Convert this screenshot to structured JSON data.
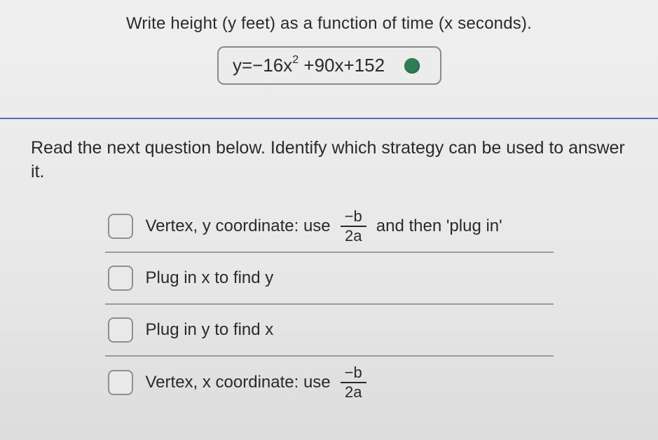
{
  "top": {
    "prompt": "Write height (y feet) as a function of time (x seconds).",
    "answer_prefix": "y=−16x",
    "answer_exp": "2",
    "answer_suffix": " +90x+152",
    "status_color": "#2e7d54"
  },
  "divider_color": "#4a6fbf",
  "bottom": {
    "prompt": "Read the next question below. Identify which strategy can be used to answer it.",
    "options": [
      {
        "pre": "Vertex, y coordinate: use ",
        "frac_num": "−b",
        "frac_den": "2a",
        "post": " and then 'plug in'"
      },
      {
        "pre": "Plug in x to find y",
        "frac_num": "",
        "frac_den": "",
        "post": ""
      },
      {
        "pre": "Plug in y to find x",
        "frac_num": "",
        "frac_den": "",
        "post": ""
      },
      {
        "pre": "Vertex, x coordinate: use ",
        "frac_num": "−b",
        "frac_den": "2a",
        "post": ""
      }
    ]
  },
  "style": {
    "background": "#ededed",
    "text_color": "#2a2a2a",
    "border_color": "#8a8a8a",
    "option_border": "#9a9a9a",
    "checkbox_border": "#8f8f8f",
    "prompt_fontsize": 24,
    "formula_fontsize": 26,
    "option_fontsize": 24
  }
}
